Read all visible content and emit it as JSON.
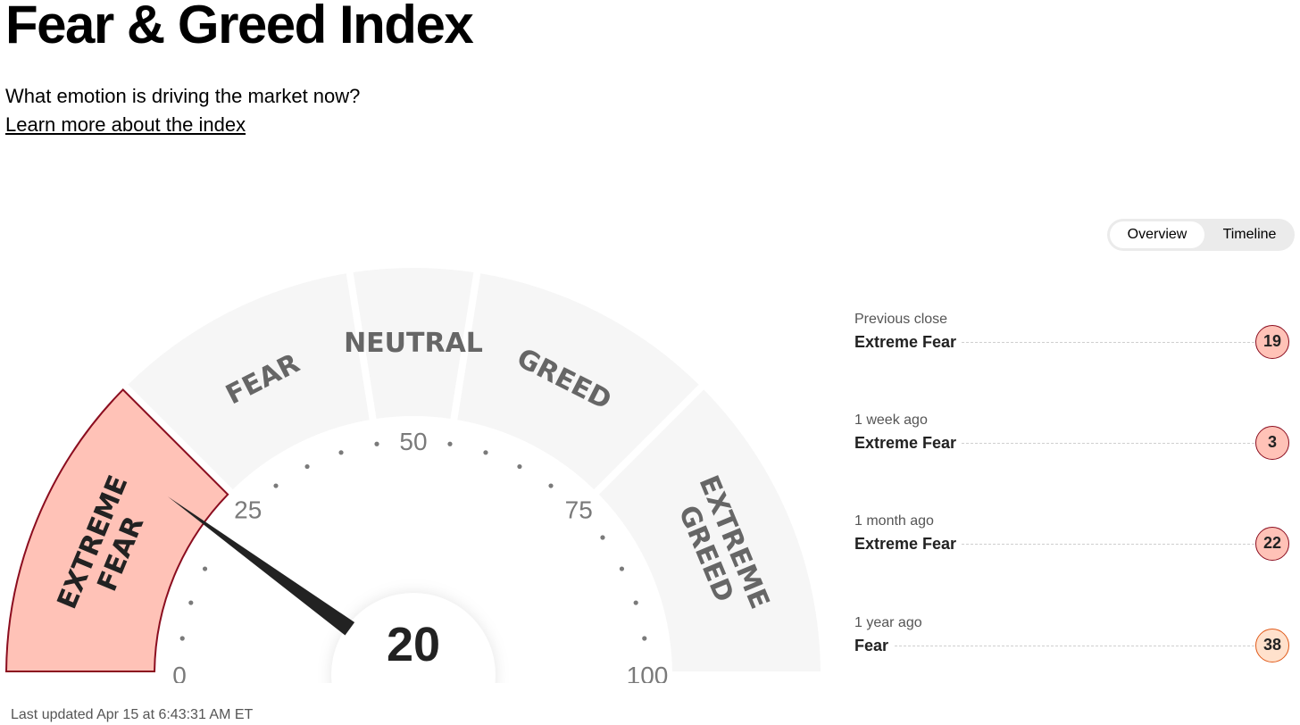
{
  "header": {
    "title": "Fear & Greed Index",
    "subtitle": "What emotion is driving the market now?",
    "learn_more": "Learn more about the index"
  },
  "toggle": {
    "options": [
      "Overview",
      "Timeline"
    ],
    "selected": "Overview"
  },
  "gauge": {
    "value": 20,
    "min": 0,
    "max": 100,
    "scale_labels": [
      "0",
      "25",
      "50",
      "75",
      "100"
    ],
    "segments": [
      {
        "lines": [
          "EXTREME",
          "FEAR"
        ],
        "from": 0,
        "to": 25,
        "active": true
      },
      {
        "lines": [
          "FEAR"
        ],
        "from": 25,
        "to": 45,
        "active": false
      },
      {
        "lines": [
          "NEUTRAL"
        ],
        "from": 45,
        "to": 55,
        "active": false
      },
      {
        "lines": [
          "GREED"
        ],
        "from": 55,
        "to": 75,
        "active": false
      },
      {
        "lines": [
          "EXTREME",
          "GREED"
        ],
        "from": 75,
        "to": 100,
        "active": false
      }
    ],
    "colors": {
      "active_fill": "#ffc2b7",
      "active_stroke": "#8b0d1f",
      "inactive_fill": "#f6f6f6",
      "label": "#666666",
      "needle": "#222222"
    }
  },
  "history": [
    {
      "period": "Previous close",
      "rating": "Extreme Fear",
      "value": "19"
    },
    {
      "period": "1 week ago",
      "rating": "Extreme Fear",
      "value": "3"
    },
    {
      "period": "1 month ago",
      "rating": "Extreme Fear",
      "value": "22"
    },
    {
      "period": "1 year ago",
      "rating": "Fear",
      "value": "38"
    }
  ],
  "footer": {
    "last_updated": "Last updated Apr 15 at 6:43:31 AM ET"
  }
}
